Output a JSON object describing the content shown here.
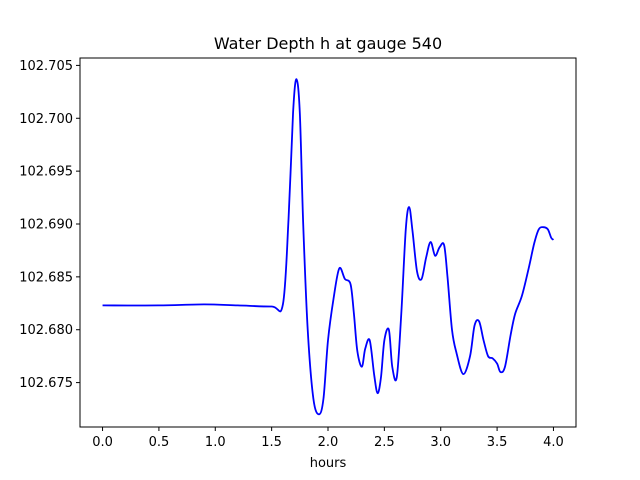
{
  "chart_data": {
    "type": "line",
    "title": "Water Depth h at gauge 540",
    "xlabel": "hours",
    "ylabel": "",
    "xlim": [
      -0.2,
      4.2
    ],
    "ylim": [
      102.6708,
      102.7057
    ],
    "xticks": [
      0.0,
      0.5,
      1.0,
      1.5,
      2.0,
      2.5,
      3.0,
      3.5,
      4.0
    ],
    "xtick_labels": [
      "0.0",
      "0.5",
      "1.0",
      "1.5",
      "2.0",
      "2.5",
      "3.0",
      "3.5",
      "4.0"
    ],
    "yticks": [
      102.675,
      102.68,
      102.685,
      102.69,
      102.695,
      102.7,
      102.705
    ],
    "ytick_labels": [
      "102.675",
      "102.680",
      "102.685",
      "102.690",
      "102.695",
      "102.700",
      "102.705"
    ],
    "grid": false,
    "colors": {
      "line": "#0000ff",
      "axes": "#000000",
      "background": "#ffffff"
    },
    "series": [
      {
        "color": "#0000ff",
        "x": [
          0.0,
          0.5,
          0.9,
          1.2,
          1.5,
          1.6,
          1.65,
          1.69,
          1.72,
          1.75,
          1.78,
          1.82,
          1.87,
          1.92,
          1.96,
          2.0,
          2.05,
          2.1,
          2.15,
          2.2,
          2.23,
          2.26,
          2.3,
          2.33,
          2.37,
          2.41,
          2.44,
          2.47,
          2.5,
          2.54,
          2.57,
          2.61,
          2.65,
          2.69,
          2.72,
          2.75,
          2.79,
          2.83,
          2.87,
          2.91,
          2.95,
          2.99,
          3.03,
          3.06,
          3.1,
          3.14,
          3.2,
          3.26,
          3.3,
          3.34,
          3.38,
          3.42,
          3.46,
          3.5,
          3.53,
          3.57,
          3.62,
          3.66,
          3.72,
          3.78,
          3.83,
          3.87,
          3.91,
          3.95,
          3.98,
          4.0
        ],
        "y": [
          102.6823,
          102.6823,
          102.6824,
          102.6823,
          102.6822,
          102.6824,
          102.6905,
          102.7005,
          102.7037,
          102.7005,
          102.69,
          102.68,
          102.6735,
          102.672,
          102.6735,
          102.679,
          102.683,
          102.6858,
          102.6848,
          102.6843,
          102.6815,
          102.678,
          102.6765,
          102.6782,
          102.679,
          102.6757,
          102.674,
          102.6755,
          102.679,
          102.68,
          102.6765,
          102.6755,
          102.6815,
          102.6895,
          102.6916,
          102.6893,
          102.6855,
          102.6848,
          102.6868,
          102.6883,
          102.687,
          102.6878,
          102.688,
          102.685,
          102.68,
          102.6778,
          102.6758,
          102.6775,
          102.6804,
          102.6808,
          102.679,
          102.6775,
          102.6773,
          102.6768,
          102.676,
          102.6765,
          102.6795,
          102.6815,
          102.6832,
          102.6858,
          102.6882,
          102.6895,
          102.6897,
          102.6895,
          102.6887,
          102.6885
        ]
      }
    ]
  }
}
